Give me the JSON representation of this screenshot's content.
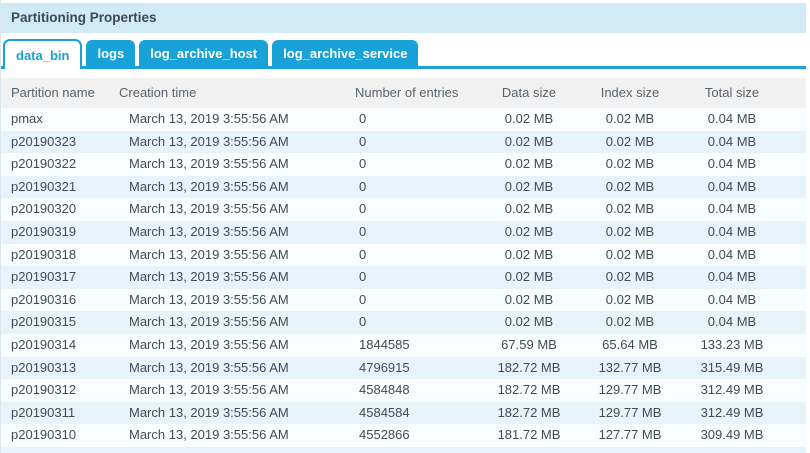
{
  "colors": {
    "accent_blue": "#18a2d7",
    "titlebar_bg": "#d2eaf6",
    "row_stripe": "#e7f3fa",
    "header_bg": "#f1f1f1"
  },
  "titlebar": {
    "title": "Partitioning Properties"
  },
  "tabs": [
    {
      "label": "data_bin",
      "active": true
    },
    {
      "label": "logs",
      "active": false
    },
    {
      "label": "log_archive_host",
      "active": false
    },
    {
      "label": "log_archive_service",
      "active": false
    }
  ],
  "table": {
    "columns": [
      "Partition name",
      "Creation time",
      "Number of entries",
      "Data size",
      "Index size",
      "Total size"
    ],
    "rows": [
      [
        "pmax",
        "March 13, 2019 3:55:56 AM",
        "0",
        "0.02 MB",
        "0.02 MB",
        "0.04 MB"
      ],
      [
        "p20190323",
        "March 13, 2019 3:55:56 AM",
        "0",
        "0.02 MB",
        "0.02 MB",
        "0.04 MB"
      ],
      [
        "p20190322",
        "March 13, 2019 3:55:56 AM",
        "0",
        "0.02 MB",
        "0.02 MB",
        "0.04 MB"
      ],
      [
        "p20190321",
        "March 13, 2019 3:55:56 AM",
        "0",
        "0.02 MB",
        "0.02 MB",
        "0.04 MB"
      ],
      [
        "p20190320",
        "March 13, 2019 3:55:56 AM",
        "0",
        "0.02 MB",
        "0.02 MB",
        "0.04 MB"
      ],
      [
        "p20190319",
        "March 13, 2019 3:55:56 AM",
        "0",
        "0.02 MB",
        "0.02 MB",
        "0.04 MB"
      ],
      [
        "p20190318",
        "March 13, 2019 3:55:56 AM",
        "0",
        "0.02 MB",
        "0.02 MB",
        "0.04 MB"
      ],
      [
        "p20190317",
        "March 13, 2019 3:55:56 AM",
        "0",
        "0.02 MB",
        "0.02 MB",
        "0.04 MB"
      ],
      [
        "p20190316",
        "March 13, 2019 3:55:56 AM",
        "0",
        "0.02 MB",
        "0.02 MB",
        "0.04 MB"
      ],
      [
        "p20190315",
        "March 13, 2019 3:55:56 AM",
        "0",
        "0.02 MB",
        "0.02 MB",
        "0.04 MB"
      ],
      [
        "p20190314",
        "March 13, 2019 3:55:56 AM",
        "1844585",
        "67.59 MB",
        "65.64 MB",
        "133.23 MB"
      ],
      [
        "p20190313",
        "March 13, 2019 3:55:56 AM",
        "4796915",
        "182.72 MB",
        "132.77 MB",
        "315.49 MB"
      ],
      [
        "p20190312",
        "March 13, 2019 3:55:56 AM",
        "4584848",
        "182.72 MB",
        "129.77 MB",
        "312.49 MB"
      ],
      [
        "p20190311",
        "March 13, 2019 3:55:56 AM",
        "4584584",
        "182.72 MB",
        "129.77 MB",
        "312.49 MB"
      ],
      [
        "p20190310",
        "March 13, 2019 3:55:56 AM",
        "4552866",
        "181.72 MB",
        "127.77 MB",
        "309.49 MB"
      ]
    ]
  }
}
